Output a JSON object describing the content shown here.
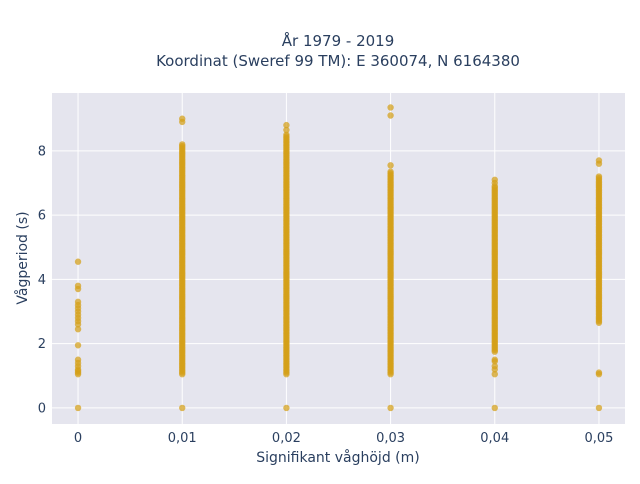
{
  "chart_data": {
    "type": "scatter",
    "title_lines": [
      "År 1979 - 2019",
      "Koordinat (Sweref 99 TM): E 360074, N 6164380"
    ],
    "xlabel": "Signifikant våghöjd (m)",
    "ylabel": "Vågperiod (s)",
    "x_ticks": [
      0,
      0.01,
      0.02,
      0.03,
      0.04,
      0.05
    ],
    "x_tick_labels": [
      "0",
      "0,01",
      "0,02",
      "0,03",
      "0,04",
      "0,05"
    ],
    "y_ticks": [
      0,
      2,
      4,
      6,
      8
    ],
    "y_tick_labels": [
      "0",
      "2",
      "4",
      "6",
      "8"
    ],
    "xlim": [
      -0.0025,
      0.0525
    ],
    "ylim": [
      -0.5,
      9.8
    ],
    "grid": true,
    "legend": false,
    "colors": {
      "marker": "#d4a017",
      "plot_bg": "#e5e5ee",
      "grid": "#ffffff",
      "text": "#2a3f5f"
    },
    "series": [
      {
        "columns": [
          {
            "x": 0,
            "zeros": true,
            "y": [
              1.05,
              1.1,
              1.15,
              1.2,
              1.3,
              1.4,
              1.5,
              1.95,
              2.45,
              2.6,
              2.7,
              2.8,
              2.9,
              3.0,
              3.1,
              3.2,
              3.3,
              3.7,
              3.8,
              4.55
            ]
          },
          {
            "x": 0.01,
            "zeros": true,
            "range": [
              1.05,
              8.2
            ],
            "extras": [
              8.9,
              9.0
            ]
          },
          {
            "x": 0.02,
            "zeros": true,
            "range": [
              1.05,
              8.5
            ],
            "extras": [
              8.65,
              8.8
            ]
          },
          {
            "x": 0.03,
            "zeros": true,
            "range": [
              1.05,
              7.35
            ],
            "extras": [
              7.55,
              9.1,
              9.35
            ]
          },
          {
            "x": 0.04,
            "zeros": true,
            "range": [
              1.75,
              6.9
            ],
            "extras": [
              1.05,
              1.2,
              1.3,
              1.45,
              1.5,
              7.0,
              7.1
            ]
          },
          {
            "x": 0.05,
            "zeros": true,
            "range": [
              2.65,
              7.2
            ],
            "extras": [
              1.05,
              1.1,
              7.6,
              7.7
            ]
          }
        ]
      }
    ]
  }
}
